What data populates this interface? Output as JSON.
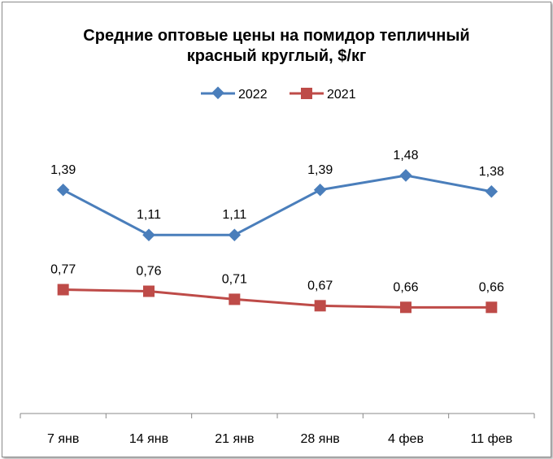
{
  "chart_data": {
    "type": "line",
    "title_lines": [
      "Средние оптовые цены на помидор тепличный",
      "красный круглый, $/кг"
    ],
    "categories": [
      "7 янв",
      "14 янв",
      "21 янв",
      "28 янв",
      "4 фев",
      "11 фев"
    ],
    "series": [
      {
        "name": "2022",
        "values": [
          1.39,
          1.11,
          1.11,
          1.39,
          1.48,
          1.38
        ],
        "labels": [
          "1,39",
          "1,11",
          "1,11",
          "1,39",
          "1,48",
          "1,38"
        ],
        "color": "#4a7ebb",
        "marker": "diamond"
      },
      {
        "name": "2021",
        "values": [
          0.77,
          0.76,
          0.71,
          0.67,
          0.66,
          0.66
        ],
        "labels": [
          "0,77",
          "0,76",
          "0,71",
          "0,67",
          "0,66",
          "0,66"
        ],
        "color": "#be4b48",
        "marker": "square"
      }
    ],
    "ylim": [
      0,
      2
    ],
    "grid": false,
    "legend_position": "top"
  }
}
